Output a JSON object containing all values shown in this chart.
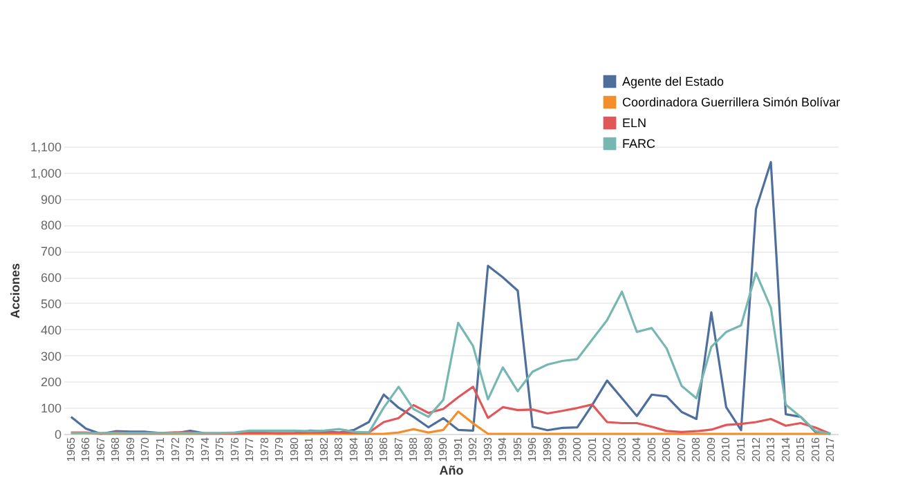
{
  "chart_data": {
    "type": "line",
    "xlabel": "Año",
    "ylabel": "Acciones",
    "categories": [
      "1965",
      "1966",
      "1967",
      "1968",
      "1969",
      "1970",
      "1971",
      "1972",
      "1973",
      "1974",
      "1975",
      "1976",
      "1977",
      "1978",
      "1979",
      "1980",
      "1981",
      "1982",
      "1983",
      "1984",
      "1985",
      "1986",
      "1987",
      "1988",
      "1989",
      "1990",
      "1991",
      "1992",
      "1993",
      "1994",
      "1995",
      "1996",
      "1998",
      "1999",
      "2000",
      "2001",
      "2002",
      "2003",
      "2004",
      "2005",
      "2006",
      "2007",
      "2008",
      "2009",
      "2010",
      "2011",
      "2012",
      "2013",
      "2014",
      "2015",
      "2016",
      "2017"
    ],
    "series": [
      {
        "name": "Agente del Estado",
        "color": "#4e6f9c",
        "values": [
          65,
          20,
          0,
          10,
          8,
          8,
          3,
          2,
          12,
          2,
          2,
          3,
          3,
          3,
          0,
          2,
          12,
          10,
          5,
          15,
          45,
          150,
          100,
          65,
          25,
          60,
          15,
          12,
          643,
          599,
          548,
          27,
          14,
          23,
          25,
          110,
          204,
          136,
          68,
          150,
          143,
          84,
          57,
          465,
          102,
          14,
          860,
          1040,
          75,
          65,
          7,
          0
        ]
      },
      {
        "name": "Coordinadora Guerrillera Simón Bolívar",
        "color": "#f28e2b",
        "values": [
          3,
          3,
          0,
          0,
          0,
          0,
          0,
          0,
          0,
          0,
          0,
          0,
          0,
          0,
          0,
          0,
          0,
          0,
          0,
          0,
          0,
          0,
          5,
          18,
          5,
          15,
          85,
          40,
          0,
          0,
          0,
          0,
          0,
          0,
          0,
          0,
          0,
          0,
          0,
          0,
          0,
          0,
          0,
          0,
          0,
          0,
          0,
          0,
          0,
          0,
          0,
          0
        ]
      },
      {
        "name": "ELN",
        "color": "#e15759",
        "values": [
          5,
          5,
          2,
          5,
          3,
          3,
          3,
          6,
          5,
          2,
          2,
          2,
          3,
          3,
          3,
          3,
          5,
          5,
          5,
          5,
          5,
          45,
          60,
          110,
          80,
          95,
          140,
          180,
          61,
          102,
          91,
          93,
          78,
          88,
          99,
          112,
          45,
          41,
          41,
          27,
          11,
          7,
          10,
          16,
          34,
          38,
          45,
          57,
          31,
          41,
          24,
          0
        ]
      },
      {
        "name": "FARC",
        "color": "#76b7b2",
        "values": [
          3,
          3,
          3,
          3,
          3,
          3,
          3,
          3,
          3,
          3,
          3,
          5,
          12,
          12,
          12,
          12,
          10,
          12,
          18,
          8,
          5,
          100,
          180,
          95,
          65,
          130,
          425,
          336,
          132,
          254,
          163,
          238,
          265,
          279,
          286,
          361,
          435,
          544,
          390,
          405,
          327,
          184,
          136,
          333,
          390,
          415,
          616,
          483,
          112,
          65,
          11,
          0
        ]
      }
    ],
    "ylim": [
      0,
      1100
    ],
    "yticks": [
      0,
      100,
      200,
      300,
      400,
      500,
      600,
      700,
      800,
      900,
      {
        "value": 1000,
        "label": "1,000"
      },
      {
        "value": 1100,
        "label": "1,100"
      }
    ],
    "grid": "y",
    "legend": "top right"
  }
}
